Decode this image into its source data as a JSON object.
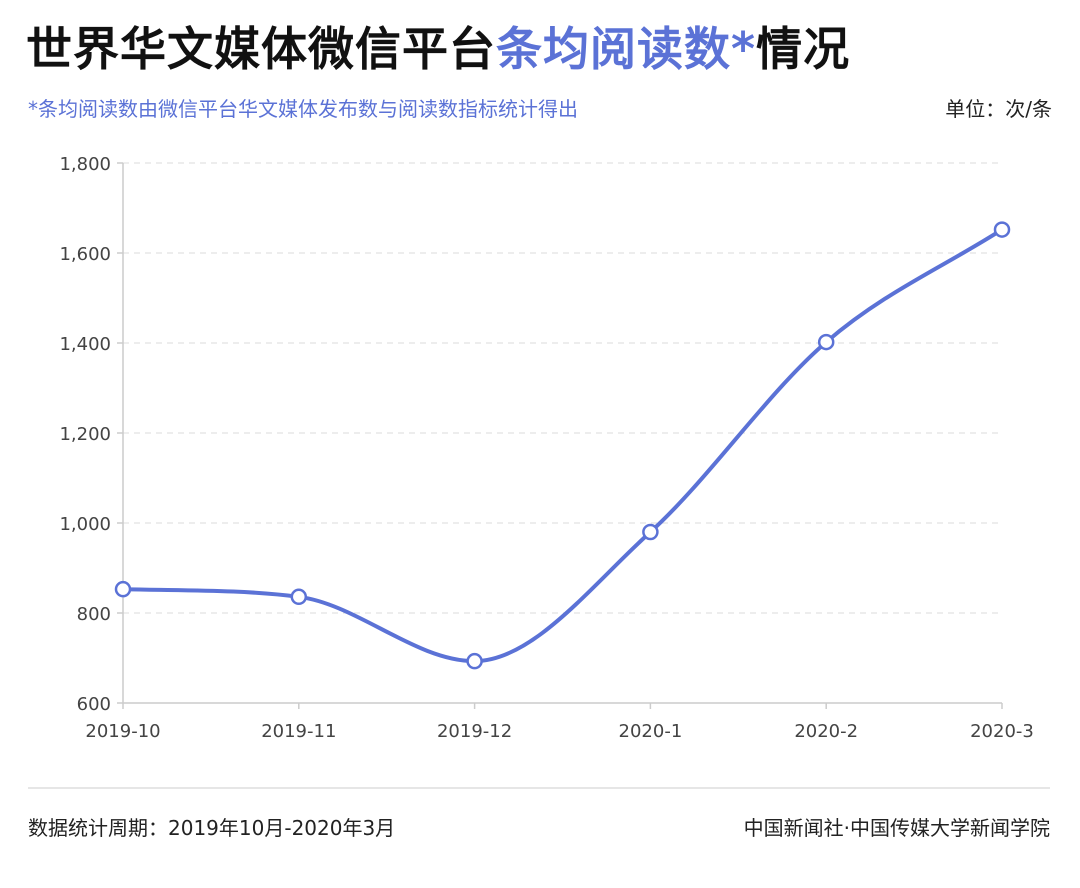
{
  "header": {
    "title_part1": "世界华文媒体微信平台",
    "title_accent": "条均阅读数*",
    "title_part2": "情况",
    "subtitle": "*条均阅读数由微信平台华文媒体发布数与阅读数指标统计得出",
    "unit": "单位：次/条"
  },
  "footer": {
    "period": "数据统计周期：2019年10月-2020年3月",
    "source": "中国新闻社·中国传媒大学新闻学院"
  },
  "colors": {
    "accent": "#5b72d6",
    "axis": "#cccccc",
    "grid": "#e2e2e2",
    "tick_text": "#444444"
  },
  "chart_data": {
    "type": "line",
    "categories": [
      "2019-10",
      "2019-11",
      "2019-12",
      "2020-1",
      "2020-2",
      "2020-3"
    ],
    "values": [
      853,
      836,
      693,
      980,
      1402,
      1652
    ],
    "ylim": [
      600,
      1800
    ],
    "yticks": [
      600,
      800,
      1000,
      1200,
      1400,
      1600,
      1800
    ],
    "ytick_labels": [
      "600",
      "800",
      "1,000",
      "1,200",
      "1,400",
      "1,600",
      "1,800"
    ],
    "grid": "horizontal dashed",
    "smooth": true,
    "markers": "hollow circles"
  }
}
